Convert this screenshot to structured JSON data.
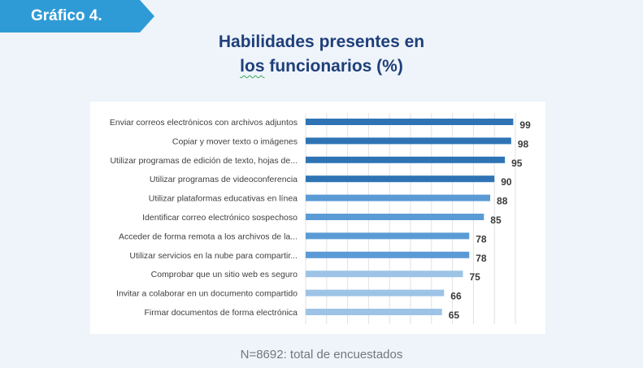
{
  "header": {
    "badge_label": "Gráfico 4.",
    "title_line1": "Habilidades  presentes  en",
    "title_line2_word": "los",
    "title_line2_rest": " funcionarios (%)"
  },
  "footnote": "N=8692: total de encuestados",
  "colors": {
    "badge": "#2f9bd6",
    "title": "#1f3f7a",
    "bar_dark": "#2e74b5",
    "bar_mid": "#5b9bd5",
    "bar_light": "#9dc3e6"
  },
  "chart_data": {
    "type": "bar",
    "orientation": "horizontal",
    "title": "Habilidades presentes en los funcionarios (%)",
    "xlim": [
      0,
      100
    ],
    "grid": true,
    "categories": [
      "Enviar correos electrónicos con archivos adjuntos",
      "Copiar y mover texto o imágenes",
      "Utilizar programas de edición de texto, hojas de...",
      "Utilizar programas de videoconferencia",
      "Utilizar plataformas educativas en línea",
      "Identificar correo electrónico sospechoso",
      "Acceder de forma remota a los archivos de la...",
      "Utilizar servicios en la nube para compartir...",
      "Comprobar que un sitio web es seguro",
      "Invitar a colaborar en un documento compartido",
      "Firmar documentos de forma electrónica"
    ],
    "values": [
      99,
      98,
      95,
      90,
      88,
      85,
      78,
      78,
      75,
      66,
      65
    ],
    "shade": [
      "dark",
      "dark",
      "dark",
      "dark",
      "mid",
      "mid",
      "mid",
      "mid",
      "light",
      "light",
      "light"
    ]
  }
}
